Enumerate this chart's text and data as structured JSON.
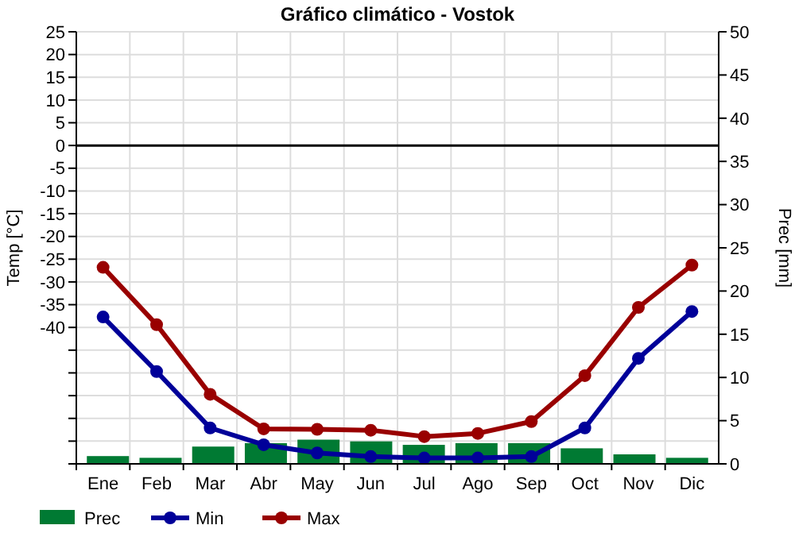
{
  "chart_data": {
    "type": "bar",
    "title": "Gráfico climático - Vostok",
    "ylabel": "Temp [°C]",
    "y2label": "Prec [mm]",
    "categories": [
      "Ene",
      "Feb",
      "Mar",
      "Abr",
      "May",
      "Jun",
      "Jul",
      "Ago",
      "Sep",
      "Oct",
      "Nov",
      "Dic"
    ],
    "series": [
      {
        "name": "Prec",
        "axis": "y2",
        "color": "#007a33",
        "values": [
          0.9,
          0.7,
          2.0,
          2.4,
          2.8,
          2.6,
          2.2,
          2.4,
          2.4,
          1.8,
          1.1,
          0.7
        ]
      },
      {
        "name": "Min",
        "type": "line",
        "color": "#000099",
        "values": [
          -37.7,
          -49.7,
          -62.1,
          -65.8,
          -67.6,
          -68.4,
          -68.7,
          -68.7,
          -68.4,
          -62.1,
          -46.8,
          -36.5
        ]
      },
      {
        "name": "Max",
        "type": "line",
        "color": "#990000",
        "values": [
          -26.8,
          -39.4,
          -54.7,
          -62.3,
          -62.4,
          -62.6,
          -64.0,
          -63.3,
          -60.7,
          -50.6,
          -35.6,
          -26.3
        ]
      }
    ],
    "ylim": [
      -70,
      25
    ],
    "yticks": [
      25,
      20,
      15,
      10,
      5,
      0,
      -5,
      -10,
      -15,
      -20,
      -25,
      -30,
      -35,
      -40,
      {
        "value": -45,
        "label": null
      },
      {
        "value": -50,
        "label": null
      },
      {
        "value": -55,
        "label": null
      },
      {
        "value": -60,
        "label": null
      },
      {
        "value": -65,
        "label": null
      },
      {
        "value": -70,
        "label": null
      }
    ],
    "y2lim": [
      0,
      50
    ],
    "y2ticks": [
      0,
      5,
      10,
      15,
      20,
      25,
      30,
      35,
      40,
      45,
      50
    ],
    "ref_lines": [
      {
        "axis": "y",
        "value": 0,
        "label": null,
        "color": "#000000"
      }
    ],
    "grid": true,
    "legend": "bottom",
    "marker": "circle",
    "line_style": "solid"
  }
}
